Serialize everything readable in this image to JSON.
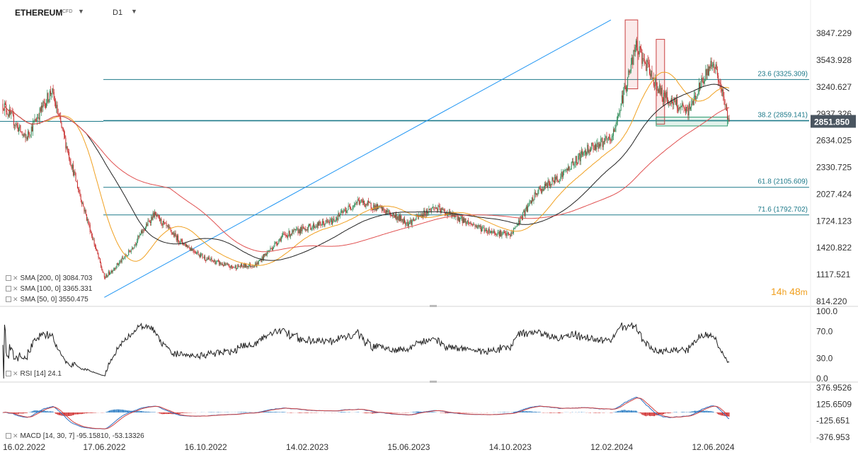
{
  "header": {
    "symbol": "ETHEREUM",
    "instrument_type": "CFD",
    "timeframe": "D1"
  },
  "price_axis": {
    "ticks": [
      "3847.229",
      "3543.928",
      "3240.627",
      "2937.326",
      "2634.025",
      "2330.725",
      "2027.424",
      "1724.123",
      "1420.822",
      "1117.521",
      "814.220"
    ],
    "current_price": "2851.850"
  },
  "rsi_axis": {
    "ticks": [
      "100.0",
      "70.0",
      "30.0",
      "0.0"
    ]
  },
  "macd_axis": {
    "ticks": [
      "376.9526",
      "125.6509",
      "-125.651",
      "-376.953"
    ]
  },
  "date_axis": {
    "ticks": [
      "16.02.2022",
      "17.06.2022",
      "16.10.2022",
      "14.02.2023",
      "15.06.2023",
      "14.10.2023",
      "12.02.2024",
      "12.06.2024"
    ]
  },
  "legends": {
    "sma200": "SMA [200, 0] 3084.703",
    "sma100": "SMA [100, 0] 3365.331",
    "sma50": "SMA [50, 0] 3550.475",
    "rsi": "RSI [14]  24.1",
    "macd": "MACD [14, 30, 7] -95.15810, -53.13326"
  },
  "timer": {
    "hours": "14",
    "h_unit": "h",
    "minutes": "48",
    "m_unit": "m"
  },
  "fib_labels": {
    "f236": "23.6 (3325.309)",
    "f382": "38.2 (2859.141)",
    "f618": "61.8 (2105.609)",
    "f716": "71.6 (1792.702)"
  },
  "colors": {
    "candle_up": "#2e8b57",
    "candle_down": "#c62828",
    "sma50": "#f0a020",
    "sma100": "#222222",
    "sma200": "#e05050",
    "fib_line": "#1e7a8a",
    "trendline": "#2196f3",
    "rsi_line": "#222222",
    "macd_line": "#3070c0",
    "macd_signal": "#d04040",
    "hist_pos": "#2f7fc4",
    "hist_neg": "#d03030",
    "current_price_bg": "#4a5560"
  },
  "chart_data": {
    "type": "candlestick",
    "title": "",
    "timeframe": "D1",
    "y_range": [
      814.22,
      4000
    ],
    "dates": [
      "2022-02-16",
      "2022-03-15",
      "2022-04-15",
      "2022-05-15",
      "2022-06-17",
      "2022-07-15",
      "2022-08-15",
      "2022-09-15",
      "2022-10-16",
      "2022-11-15",
      "2022-12-15",
      "2023-01-15",
      "2023-02-14",
      "2023-03-15",
      "2023-04-15",
      "2023-05-15",
      "2023-06-15",
      "2023-07-15",
      "2023-08-15",
      "2023-09-15",
      "2023-10-14",
      "2023-11-15",
      "2023-12-15",
      "2024-01-15",
      "2024-02-12",
      "2024-03-12",
      "2024-04-12",
      "2024-05-12",
      "2024-06-12",
      "2024-07-01"
    ],
    "close": [
      3050,
      2650,
      3200,
      2150,
      1080,
      1350,
      1800,
      1500,
      1300,
      1200,
      1230,
      1550,
      1650,
      1720,
      1950,
      1850,
      1700,
      1880,
      1750,
      1620,
      1560,
      2050,
      2250,
      2550,
      2650,
      3700,
      3150,
      2950,
      3550,
      2851.85
    ],
    "indicators": {
      "sma200": 3084.703,
      "sma100": 3365.331,
      "sma50": 3550.475,
      "rsi14": 24.1,
      "macd": [
        -95.1581,
        -53.13326
      ]
    },
    "fibonacci": [
      {
        "level": 23.6,
        "price": 3325.309
      },
      {
        "level": 38.2,
        "price": 2859.141
      },
      {
        "level": 61.8,
        "price": 2105.609
      },
      {
        "level": 71.6,
        "price": 1792.702
      }
    ],
    "current_price": 2851.85,
    "rsi_levels": [
      70,
      30
    ],
    "rsi_range": [
      0,
      100
    ],
    "macd_range": [
      -376.953,
      376.9526
    ]
  }
}
